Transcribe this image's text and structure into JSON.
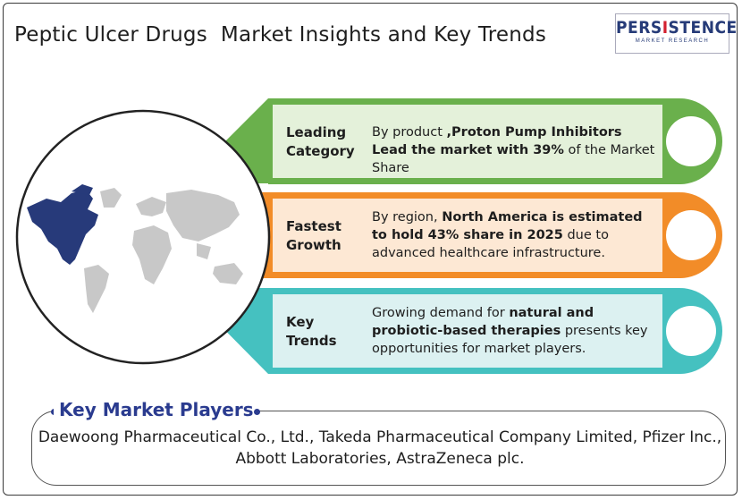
{
  "title": "Peptic Ulcer Drugs  Market Insights and Key Trends",
  "logo": {
    "name_a": "PERS",
    "name_i": "I",
    "name_b": "STENCE",
    "tagline": "MARKET RESEARCH"
  },
  "colors": {
    "green": "#6ab04c",
    "green_fill": "#e4f1da",
    "orange": "#f28c28",
    "orange_fill": "#fde8d4",
    "teal": "#45c1c0",
    "teal_fill": "#dcf1f1",
    "map_highlight": "#273a7a",
    "map_base": "#c8c8c8",
    "heading_blue": "#2a3b8f"
  },
  "rows": [
    {
      "category": [
        "Leading",
        "Category"
      ],
      "segments": [
        {
          "text": "By product ",
          "bold": false
        },
        {
          "text": ",Proton Pump Inhibitors Lead the market with 39%",
          "bold": true
        },
        {
          "text": " of the Market Share",
          "bold": false
        }
      ]
    },
    {
      "category": [
        "Fastest",
        "Growth"
      ],
      "segments": [
        {
          "text": "By region, ",
          "bold": false
        },
        {
          "text": "North America is estimated to hold 43% share in 2025",
          "bold": true
        },
        {
          "text": " due to advanced healthcare infrastructure.",
          "bold": false
        }
      ]
    },
    {
      "category": [
        "Key",
        "Trends"
      ],
      "segments": [
        {
          "text": "Growing demand for ",
          "bold": false
        },
        {
          "text": "natural and probiotic-based therapies",
          "bold": true
        },
        {
          "text": " presents key opportunities for market players.",
          "bold": false
        }
      ]
    }
  ],
  "players": {
    "heading": "Key Market Players",
    "text": "Daewoong Pharmaceutical Co., Ltd., Takeda Pharmaceutical Company Limited, Pfizer Inc., Abbott Laboratories, AstraZeneca plc."
  },
  "icons": {
    "map": "world-map-icon"
  }
}
